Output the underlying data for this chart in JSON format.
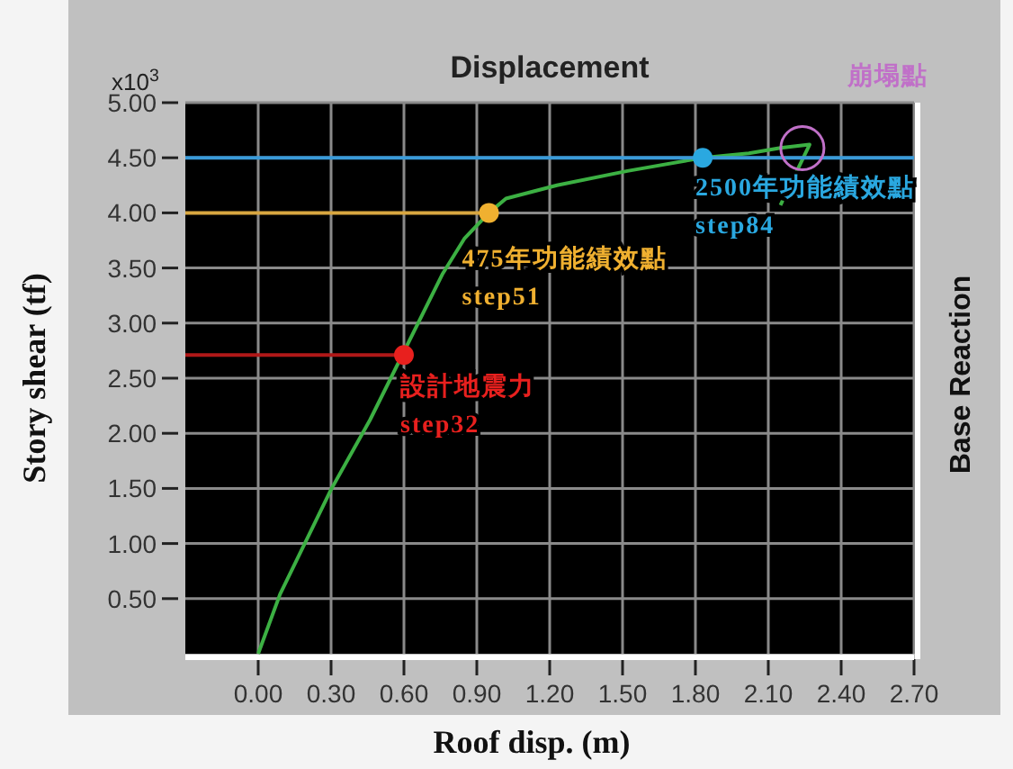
{
  "chart_data": {
    "type": "line",
    "title": "Displacement",
    "xlabel": "Roof disp. (m)",
    "ylabel": "Story shear (tf)",
    "y2label": "Base Reaction",
    "xlim": [
      -0.3,
      2.7
    ],
    "xticks": [
      {
        "value": 0,
        "label": "0.00"
      },
      {
        "value": 0.3,
        "label": "0.30"
      },
      {
        "value": 0.6,
        "label": "0.60"
      },
      {
        "value": 0.9,
        "label": "0.90"
      },
      {
        "value": 1.2,
        "label": "1.20"
      },
      {
        "value": 1.5,
        "label": "1.50"
      },
      {
        "value": 1.8,
        "label": "1.80"
      },
      {
        "value": 2.1,
        "label": "2.10"
      },
      {
        "value": 2.4,
        "label": "2.40"
      },
      {
        "value": 2.7,
        "label": "2.70"
      }
    ],
    "ylim": [
      0,
      5
    ],
    "yticks": [
      {
        "value": 0.5,
        "label": "0.50"
      },
      {
        "value": 1,
        "label": "1.00"
      },
      {
        "value": 1.5,
        "label": "1.50"
      },
      {
        "value": 2,
        "label": "2.00"
      },
      {
        "value": 2.5,
        "label": "2.50"
      },
      {
        "value": 3,
        "label": "3.00"
      },
      {
        "value": 3.5,
        "label": "3.50"
      },
      {
        "value": 4,
        "label": "4.00"
      },
      {
        "value": 4.5,
        "label": "4.50"
      },
      {
        "value": 5,
        "label": "5.00"
      }
    ],
    "grid": true,
    "series": [
      {
        "color": "#3cb043",
        "x": [
          0,
          0.09,
          0.3,
          0.46,
          0.76,
          0.85,
          0.95,
          1.02,
          1.23,
          1.52,
          1.83,
          2.02,
          2.15,
          2.27,
          2.15
        ],
        "values": [
          0,
          0.54,
          1.49,
          2.12,
          3.45,
          3.77,
          4.0,
          4.13,
          4.25,
          4.38,
          4.5,
          4.54,
          4.59,
          4.62,
          4.07
        ]
      },
      {
        "type": "line",
        "color": "#b01818",
        "x": [
          -0.3,
          0.6
        ],
        "values": [
          2.71,
          2.71
        ]
      },
      {
        "type": "line",
        "color": "#d8a640",
        "x": [
          -0.3,
          0.95
        ],
        "values": [
          4.0,
          4.0
        ]
      },
      {
        "type": "line",
        "color": "#3a9ad8",
        "x": [
          -0.3,
          2.7
        ],
        "values": [
          4.5,
          4.5
        ]
      },
      {
        "type": "scatter",
        "color": "#e8201e",
        "x": [
          0.6
        ],
        "values": [
          2.71
        ]
      },
      {
        "type": "scatter",
        "color": "#f0b030",
        "x": [
          0.95
        ],
        "values": [
          4.0
        ]
      },
      {
        "type": "scatter",
        "color": "#2aa8e0",
        "x": [
          1.83
        ],
        "values": [
          4.5
        ]
      }
    ],
    "annotations": [
      "x10$^{3}$",
      {
        "text": "設計地震力\nstep32",
        "x": 0.6,
        "y": 2.71
      },
      {
        "text": "475年功能績效點\nstep51",
        "x": 0.95,
        "y": 4.0
      },
      {
        "text": "2500年功能績效點\nstep84",
        "x": 1.83,
        "y": 4.5
      },
      {
        "text": "崩塌點",
        "x": 2.27,
        "y": 4.62
      }
    ]
  }
}
